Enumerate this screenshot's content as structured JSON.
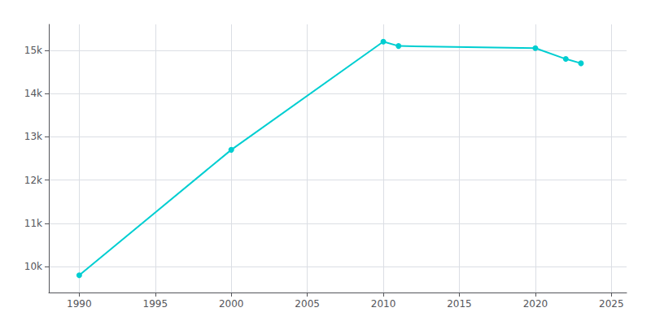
{
  "chart_data": {
    "type": "line",
    "x": [
      1990,
      2000,
      2010,
      2011,
      2020,
      2022,
      2023
    ],
    "values": [
      9800,
      12700,
      15200,
      15100,
      15050,
      14800,
      14700
    ],
    "color": "#00CED1",
    "marker": "circle",
    "xlim": [
      1988,
      2026
    ],
    "ylim": [
      9400,
      15600
    ],
    "xticks": [
      1990,
      1995,
      2000,
      2005,
      2010,
      2015,
      2020,
      2025
    ],
    "yticks": [
      {
        "value": 10000,
        "label": "10k"
      },
      {
        "value": 11000,
        "label": "11k"
      },
      {
        "value": 12000,
        "label": "12k"
      },
      {
        "value": 13000,
        "label": "13k"
      },
      {
        "value": 14000,
        "label": "14k"
      },
      {
        "value": 15000,
        "label": "15k"
      }
    ],
    "grid": true
  }
}
